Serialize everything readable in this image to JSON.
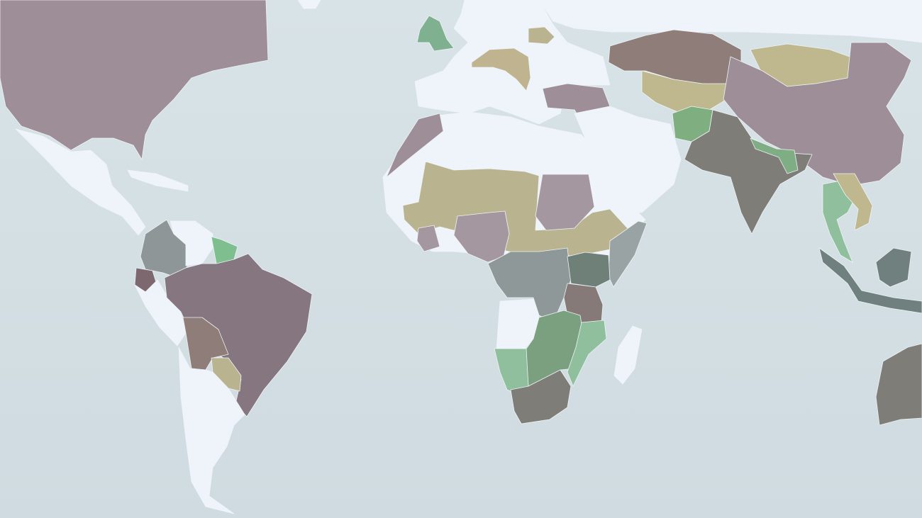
{
  "map": {
    "type": "choropleth-world",
    "ocean_color": "#d3dfe3",
    "no_data_color": "#eef4fa",
    "palette": [
      "#9e8e98",
      "#857680",
      "#8e7d78",
      "#7f7d78",
      "#8e9698",
      "#6f807e",
      "#b9b48f",
      "#7fae84",
      "#8fbf9c"
    ]
  },
  "regions": {
    "north_america": "#9e8e98",
    "greenland": "#eef4fa",
    "mexico_central_america": "#eef4fa",
    "caribbean": "#eef4fa",
    "colombia": "#8e9698",
    "venezuela": "#eef4fa",
    "guyana_suriname": "#7fbf8f",
    "ecuador": "#7d6870",
    "peru": "#eef4fa",
    "brazil": "#857680",
    "bolivia": "#8e7d78",
    "paraguay": "#b9b48f",
    "southern_cone": "#eef4fa",
    "europe": "#eef4fa",
    "uk": "#7fb08f",
    "belarus": "#b9b48f",
    "central_europe": "#bfb48f",
    "turkey": "#9e8e98",
    "north_africa": "#eef4fa",
    "morocco": "#9e8e98",
    "sahel": "#b9b48f",
    "sudan": "#a5979f",
    "nigeria": "#a5979f",
    "ivory_coast": "#a5979f",
    "ethiopia": "#b9b48f",
    "somalia": "#9aa3a4",
    "congo": "#8e9898",
    "east_africa": "#6f8078",
    "tanzania": "#857a78",
    "angola": "#eef4fa",
    "zambia_zimbabwe": "#7aa07f",
    "mozambique": "#8fbf9c",
    "namibia_botswana": "#8fbf9c",
    "south_africa": "#7f7d78",
    "madagascar": "#eef4fa",
    "middle_east": "#eef4fa",
    "russia": "#eef4fa",
    "kazakhstan": "#8e7d78",
    "central_asia": "#bfb88f",
    "mongolia": "#bfb88f",
    "china": "#9e8e98",
    "afghanistan": "#7fae80",
    "south_asia": "#7f7d78",
    "nepal_bangladesh": "#7fae84",
    "mainland_se_asia": "#8fbf9c",
    "indochina": "#bfb88f",
    "indonesia": "#6f807e",
    "australia": "#7f7d78"
  }
}
